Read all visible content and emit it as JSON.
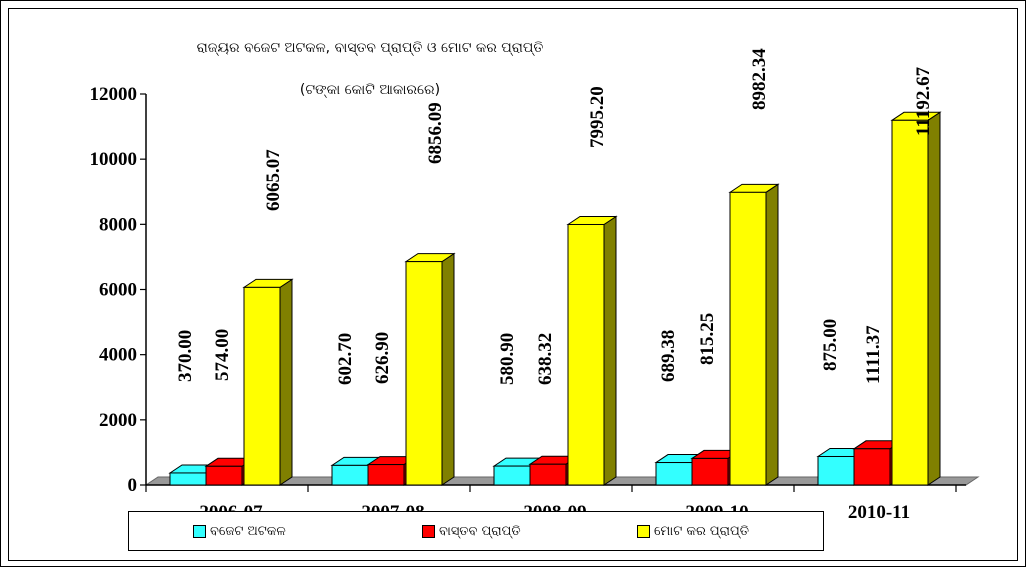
{
  "chart_data": {
    "type": "bar",
    "title": "ରାଜ୍ୟର ବଜେଟ ଅଟକଳ, ବାସ୍ତବ ପ୍ରାପ୍ତି ଓ ମୋଟ କର ପ୍ରାପ୍ତି",
    "subtitle": "(ଟଙ୍କା କୋଟି ଆକାରରେ)",
    "categories": [
      "2006-07",
      "2007-08",
      "2008-09",
      "2009-10",
      "2010-11"
    ],
    "series": [
      {
        "name": "ବଜେଟ ଅଟକଳ",
        "color": "#33ffff",
        "values": [
          370.0,
          602.7,
          580.9,
          689.38,
          875.0
        ],
        "labels": [
          "370.00",
          "602.70",
          "580.90",
          "689.38",
          "875.00"
        ]
      },
      {
        "name": "ବାସ୍ତବ ପ୍ରାପ୍ତି",
        "color": "#ff0000",
        "values": [
          574.0,
          626.9,
          638.32,
          815.25,
          1111.37
        ],
        "labels": [
          "574.00",
          "626.90",
          "638.32",
          "815.25",
          "1111.37"
        ]
      },
      {
        "name": "ମୋଟ କର ପ୍ରାପ୍ତି",
        "color": "#ffff00",
        "values": [
          6065.07,
          6856.09,
          7995.2,
          8982.34,
          11192.67
        ],
        "labels": [
          "6065.07",
          "6856.09",
          "7995.20",
          "8982.34",
          "11192.67"
        ]
      }
    ],
    "y_ticks": [
      "0",
      "2000",
      "4000",
      "6000",
      "8000",
      "10000",
      "12000"
    ],
    "ylim": [
      0,
      12000
    ],
    "grid": false,
    "legend_position": "bottom",
    "style": "3d-bar"
  }
}
